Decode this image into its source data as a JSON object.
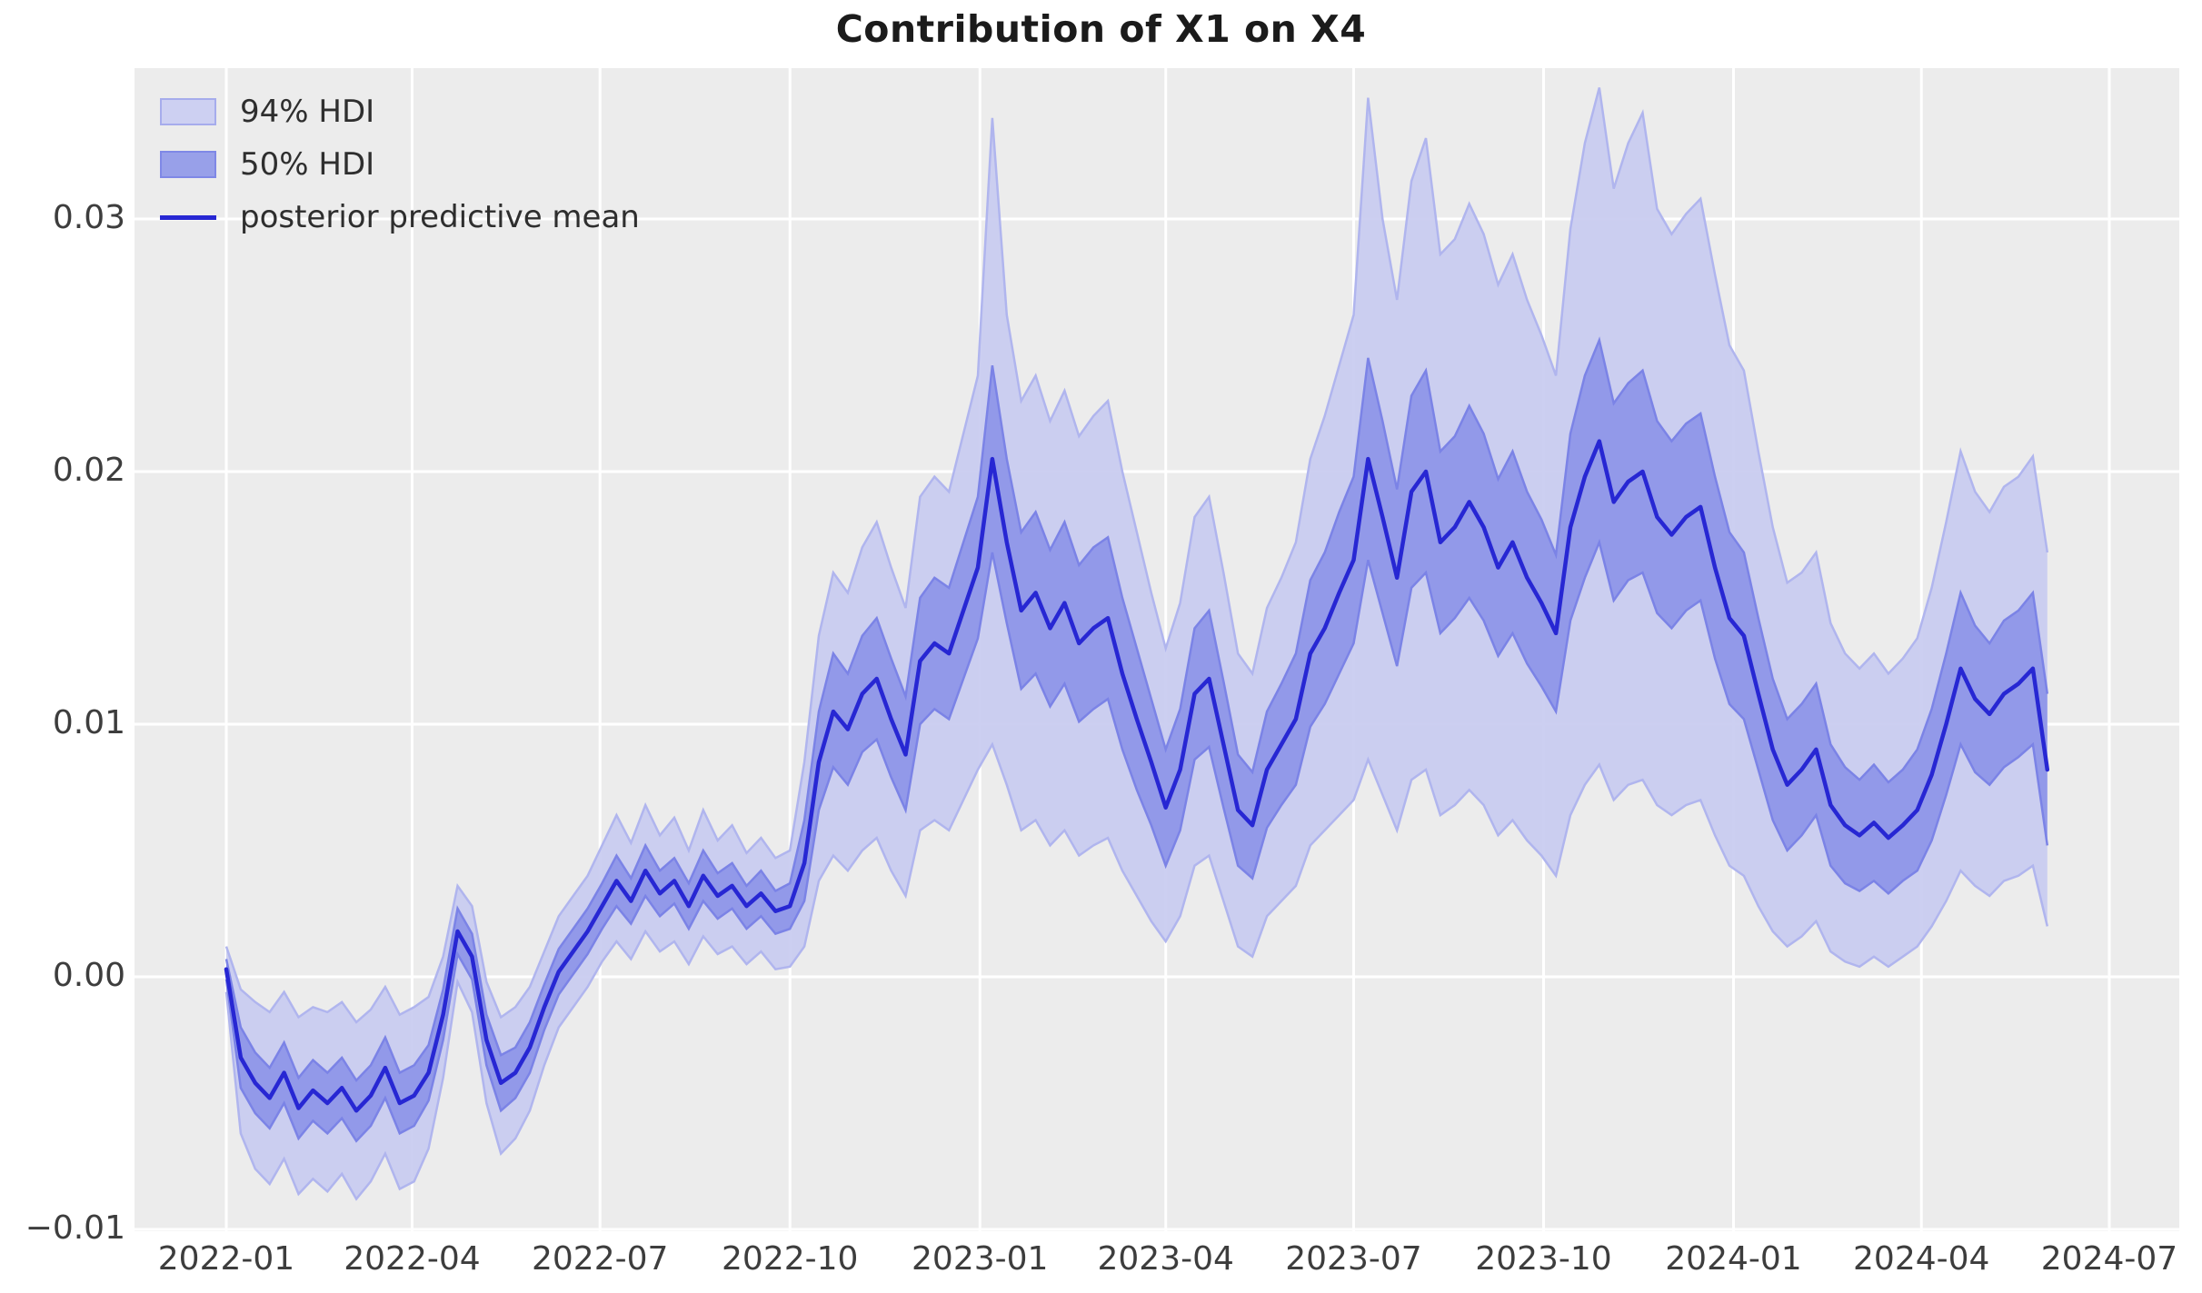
{
  "figure": {
    "title": "Contribution of X1 on X4",
    "background": "#ffffff",
    "plot_background": "#ececec",
    "grid_color": "#ffffff",
    "tick_label_color": "#3d3d3d",
    "title_color": "#1b1b1b"
  },
  "legend": {
    "items": [
      {
        "label": "94% HDI",
        "type": "patch",
        "fill": "#cdd0f2",
        "border": "#a6acec"
      },
      {
        "label": "50% HDI",
        "type": "patch",
        "fill": "#98a0e9",
        "border": "#7f88e6"
      },
      {
        "label": "posterior predictive mean",
        "type": "line",
        "color": "#2727d3"
      }
    ]
  },
  "chart_data": {
    "type": "line",
    "title": "Contribution of X1 on X4",
    "xlabel": "",
    "ylabel": "",
    "grid": true,
    "legend_position": "upper left",
    "x_start_date": "2022-01-01",
    "x_interval_days": 7,
    "x_axis": {
      "ticks": [
        {
          "label": "2022-01",
          "date": "2022-01-01"
        },
        {
          "label": "2022-04",
          "date": "2022-04-01"
        },
        {
          "label": "2022-07",
          "date": "2022-07-01"
        },
        {
          "label": "2022-10",
          "date": "2022-10-01"
        },
        {
          "label": "2023-01",
          "date": "2023-01-01"
        },
        {
          "label": "2023-04",
          "date": "2023-04-01"
        },
        {
          "label": "2023-07",
          "date": "2023-07-01"
        },
        {
          "label": "2023-10",
          "date": "2023-10-01"
        },
        {
          "label": "2024-01",
          "date": "2024-01-01"
        },
        {
          "label": "2024-04",
          "date": "2024-04-01"
        },
        {
          "label": "2024-07",
          "date": "2024-07-01"
        }
      ]
    },
    "y_axis": {
      "range": [
        -0.0101,
        0.036
      ],
      "ticks": [
        {
          "label": "−0.01",
          "value": -0.01
        },
        {
          "label": "0.00",
          "value": 0.0
        },
        {
          "label": "0.01",
          "value": 0.01
        },
        {
          "label": "0.02",
          "value": 0.02
        },
        {
          "label": "0.03",
          "value": 0.03
        }
      ]
    },
    "series": [
      {
        "name": "94% HDI",
        "kind": "band",
        "fill": "#c9ccf0",
        "edge": "#b0b5ee",
        "upper": [
          0.0012,
          -0.0005,
          -0.001,
          -0.0014,
          -0.0006,
          -0.0016,
          -0.0012,
          -0.0014,
          -0.001,
          -0.0018,
          -0.0013,
          -0.0004,
          -0.0015,
          -0.0012,
          -0.0008,
          0.0008,
          0.0036,
          0.0028,
          -0.0002,
          -0.0016,
          -0.0012,
          -0.0004,
          0.001,
          0.0024,
          0.0032,
          0.004,
          0.0052,
          0.0064,
          0.0053,
          0.0068,
          0.0056,
          0.0063,
          0.005,
          0.0066,
          0.0054,
          0.006,
          0.0049,
          0.0055,
          0.0047,
          0.005,
          0.0085,
          0.0135,
          0.016,
          0.0152,
          0.017,
          0.018,
          0.0162,
          0.0146,
          0.019,
          0.0198,
          0.0192,
          0.0215,
          0.0238,
          0.034,
          0.0262,
          0.0228,
          0.0238,
          0.022,
          0.0232,
          0.0214,
          0.0222,
          0.0228,
          0.02,
          0.0176,
          0.0152,
          0.013,
          0.0148,
          0.0182,
          0.019,
          0.016,
          0.0128,
          0.012,
          0.0146,
          0.0158,
          0.0172,
          0.0205,
          0.0222,
          0.0242,
          0.0262,
          0.0348,
          0.03,
          0.0268,
          0.0315,
          0.0332,
          0.0286,
          0.0292,
          0.0306,
          0.0294,
          0.0274,
          0.0286,
          0.0268,
          0.0254,
          0.0238,
          0.0296,
          0.033,
          0.0352,
          0.0312,
          0.033,
          0.0342,
          0.0304,
          0.0294,
          0.0302,
          0.0308,
          0.0278,
          0.025,
          0.024,
          0.0208,
          0.0178,
          0.0156,
          0.016,
          0.0168,
          0.014,
          0.0128,
          0.0122,
          0.0128,
          0.012,
          0.0126,
          0.0134,
          0.0154,
          0.018,
          0.0208,
          0.0192,
          0.0184,
          0.0194,
          0.0198,
          0.0206,
          0.0168
        ],
        "lower": [
          -0.0006,
          -0.0062,
          -0.0076,
          -0.0082,
          -0.0072,
          -0.0086,
          -0.008,
          -0.0085,
          -0.0078,
          -0.0088,
          -0.0081,
          -0.007,
          -0.0084,
          -0.0081,
          -0.0068,
          -0.004,
          -0.0002,
          -0.0014,
          -0.005,
          -0.007,
          -0.0064,
          -0.0053,
          -0.0035,
          -0.002,
          -0.0012,
          -0.0004,
          0.0006,
          0.0014,
          0.0007,
          0.0018,
          0.001,
          0.0014,
          0.0005,
          0.0016,
          0.0009,
          0.0012,
          0.0005,
          0.001,
          0.0003,
          0.0004,
          0.0012,
          0.0038,
          0.0048,
          0.0042,
          0.005,
          0.0055,
          0.0042,
          0.0032,
          0.0058,
          0.0062,
          0.0058,
          0.007,
          0.0082,
          0.0092,
          0.0076,
          0.0058,
          0.0062,
          0.0052,
          0.0058,
          0.0048,
          0.0052,
          0.0055,
          0.0042,
          0.0032,
          0.0022,
          0.0014,
          0.0024,
          0.0044,
          0.0048,
          0.003,
          0.0012,
          0.0008,
          0.0024,
          0.003,
          0.0036,
          0.0052,
          0.0058,
          0.0064,
          0.007,
          0.0086,
          0.0072,
          0.0058,
          0.0078,
          0.0082,
          0.0064,
          0.0068,
          0.0074,
          0.0068,
          0.0056,
          0.0062,
          0.0054,
          0.0048,
          0.004,
          0.0064,
          0.0076,
          0.0084,
          0.007,
          0.0076,
          0.0078,
          0.0068,
          0.0064,
          0.0068,
          0.007,
          0.0056,
          0.0044,
          0.004,
          0.0028,
          0.0018,
          0.0012,
          0.0016,
          0.0022,
          0.001,
          0.0006,
          0.0004,
          0.0008,
          0.0004,
          0.0008,
          0.0012,
          0.002,
          0.003,
          0.0042,
          0.0036,
          0.0032,
          0.0038,
          0.004,
          0.0044,
          0.002
        ]
      },
      {
        "name": "50% HDI",
        "kind": "band",
        "fill": "#8e96e8",
        "edge": "#7b83e6",
        "upper": [
          0.0007,
          -0.002,
          -0.003,
          -0.0036,
          -0.0026,
          -0.004,
          -0.0033,
          -0.0038,
          -0.0032,
          -0.0041,
          -0.0035,
          -0.0024,
          -0.0038,
          -0.0035,
          -0.0027,
          -0.0005,
          0.0027,
          0.0017,
          -0.0015,
          -0.0031,
          -0.0028,
          -0.0018,
          -0.0003,
          0.0011,
          0.0019,
          0.0027,
          0.0037,
          0.0048,
          0.0039,
          0.0052,
          0.0042,
          0.0047,
          0.0037,
          0.005,
          0.0041,
          0.0045,
          0.0036,
          0.0042,
          0.0034,
          0.0037,
          0.0062,
          0.0105,
          0.0128,
          0.012,
          0.0135,
          0.0142,
          0.0126,
          0.0111,
          0.015,
          0.0158,
          0.0154,
          0.0172,
          0.019,
          0.0242,
          0.0205,
          0.0176,
          0.0184,
          0.0169,
          0.018,
          0.0163,
          0.017,
          0.0174,
          0.015,
          0.013,
          0.011,
          0.009,
          0.0106,
          0.0138,
          0.0145,
          0.0117,
          0.0088,
          0.0081,
          0.0105,
          0.0116,
          0.0128,
          0.0157,
          0.0168,
          0.0184,
          0.0198,
          0.0245,
          0.022,
          0.0193,
          0.023,
          0.024,
          0.0208,
          0.0214,
          0.0226,
          0.0215,
          0.0197,
          0.0208,
          0.0192,
          0.0181,
          0.0167,
          0.0215,
          0.0238,
          0.0252,
          0.0227,
          0.0235,
          0.024,
          0.022,
          0.0212,
          0.0219,
          0.0223,
          0.0198,
          0.0176,
          0.0168,
          0.0142,
          0.0118,
          0.0102,
          0.0108,
          0.0116,
          0.0092,
          0.0083,
          0.0078,
          0.0084,
          0.0077,
          0.0082,
          0.009,
          0.0106,
          0.0128,
          0.0152,
          0.0139,
          0.0132,
          0.0141,
          0.0145,
          0.0152,
          0.0112
        ],
        "lower": [
          -0.0001,
          -0.0044,
          -0.0054,
          -0.006,
          -0.005,
          -0.0064,
          -0.0057,
          -0.0062,
          -0.0056,
          -0.0065,
          -0.0059,
          -0.0048,
          -0.0062,
          -0.0059,
          -0.0049,
          -0.0025,
          0.0009,
          -0.0001,
          -0.0035,
          -0.0053,
          -0.0048,
          -0.0038,
          -0.0021,
          -0.0007,
          0.0001,
          0.0009,
          0.0019,
          0.0028,
          0.0021,
          0.0032,
          0.0024,
          0.0029,
          0.0019,
          0.003,
          0.0023,
          0.0027,
          0.0019,
          0.0024,
          0.0017,
          0.0019,
          0.003,
          0.0066,
          0.0083,
          0.0076,
          0.0089,
          0.0094,
          0.0079,
          0.0066,
          0.01,
          0.0106,
          0.0102,
          0.0118,
          0.0134,
          0.0168,
          0.014,
          0.0114,
          0.012,
          0.0107,
          0.0116,
          0.0101,
          0.0106,
          0.011,
          0.009,
          0.0074,
          0.006,
          0.0044,
          0.0058,
          0.0086,
          0.0091,
          0.0067,
          0.0044,
          0.0039,
          0.0059,
          0.0068,
          0.0076,
          0.0099,
          0.0108,
          0.012,
          0.0132,
          0.0165,
          0.0144,
          0.0123,
          0.0154,
          0.016,
          0.0136,
          0.0142,
          0.015,
          0.0141,
          0.0127,
          0.0136,
          0.0124,
          0.0115,
          0.0105,
          0.0141,
          0.0158,
          0.0172,
          0.0149,
          0.0157,
          0.016,
          0.0144,
          0.0138,
          0.0145,
          0.0149,
          0.0126,
          0.0108,
          0.0102,
          0.0082,
          0.0062,
          0.005,
          0.0056,
          0.0064,
          0.0044,
          0.0037,
          0.0034,
          0.0038,
          0.0033,
          0.0038,
          0.0042,
          0.0054,
          0.0072,
          0.0092,
          0.0081,
          0.0076,
          0.0083,
          0.0087,
          0.0092,
          0.0052
        ]
      },
      {
        "name": "posterior predictive mean",
        "kind": "line",
        "color": "#2727d3",
        "values": [
          0.0003,
          -0.0032,
          -0.0042,
          -0.0048,
          -0.0038,
          -0.0052,
          -0.0045,
          -0.005,
          -0.0044,
          -0.0053,
          -0.0047,
          -0.0036,
          -0.005,
          -0.0047,
          -0.0038,
          -0.0015,
          0.0018,
          0.0008,
          -0.0025,
          -0.0042,
          -0.0038,
          -0.0028,
          -0.0012,
          0.0002,
          0.001,
          0.0018,
          0.0028,
          0.0038,
          0.003,
          0.0042,
          0.0033,
          0.0038,
          0.0028,
          0.004,
          0.0032,
          0.0036,
          0.0028,
          0.0033,
          0.0026,
          0.0028,
          0.0045,
          0.0085,
          0.0105,
          0.0098,
          0.0112,
          0.0118,
          0.0102,
          0.0088,
          0.0125,
          0.0132,
          0.0128,
          0.0145,
          0.0162,
          0.0205,
          0.0172,
          0.0145,
          0.0152,
          0.0138,
          0.0148,
          0.0132,
          0.0138,
          0.0142,
          0.012,
          0.0102,
          0.0085,
          0.0067,
          0.0082,
          0.0112,
          0.0118,
          0.0092,
          0.0066,
          0.006,
          0.0082,
          0.0092,
          0.0102,
          0.0128,
          0.0138,
          0.0152,
          0.0165,
          0.0205,
          0.0182,
          0.0158,
          0.0192,
          0.02,
          0.0172,
          0.0178,
          0.0188,
          0.0178,
          0.0162,
          0.0172,
          0.0158,
          0.0148,
          0.0136,
          0.0178,
          0.0198,
          0.0212,
          0.0188,
          0.0196,
          0.02,
          0.0182,
          0.0175,
          0.0182,
          0.0186,
          0.0162,
          0.0142,
          0.0135,
          0.0112,
          0.009,
          0.0076,
          0.0082,
          0.009,
          0.0068,
          0.006,
          0.0056,
          0.0061,
          0.0055,
          0.006,
          0.0066,
          0.008,
          0.01,
          0.0122,
          0.011,
          0.0104,
          0.0112,
          0.0116,
          0.0122,
          0.0082
        ]
      }
    ]
  }
}
